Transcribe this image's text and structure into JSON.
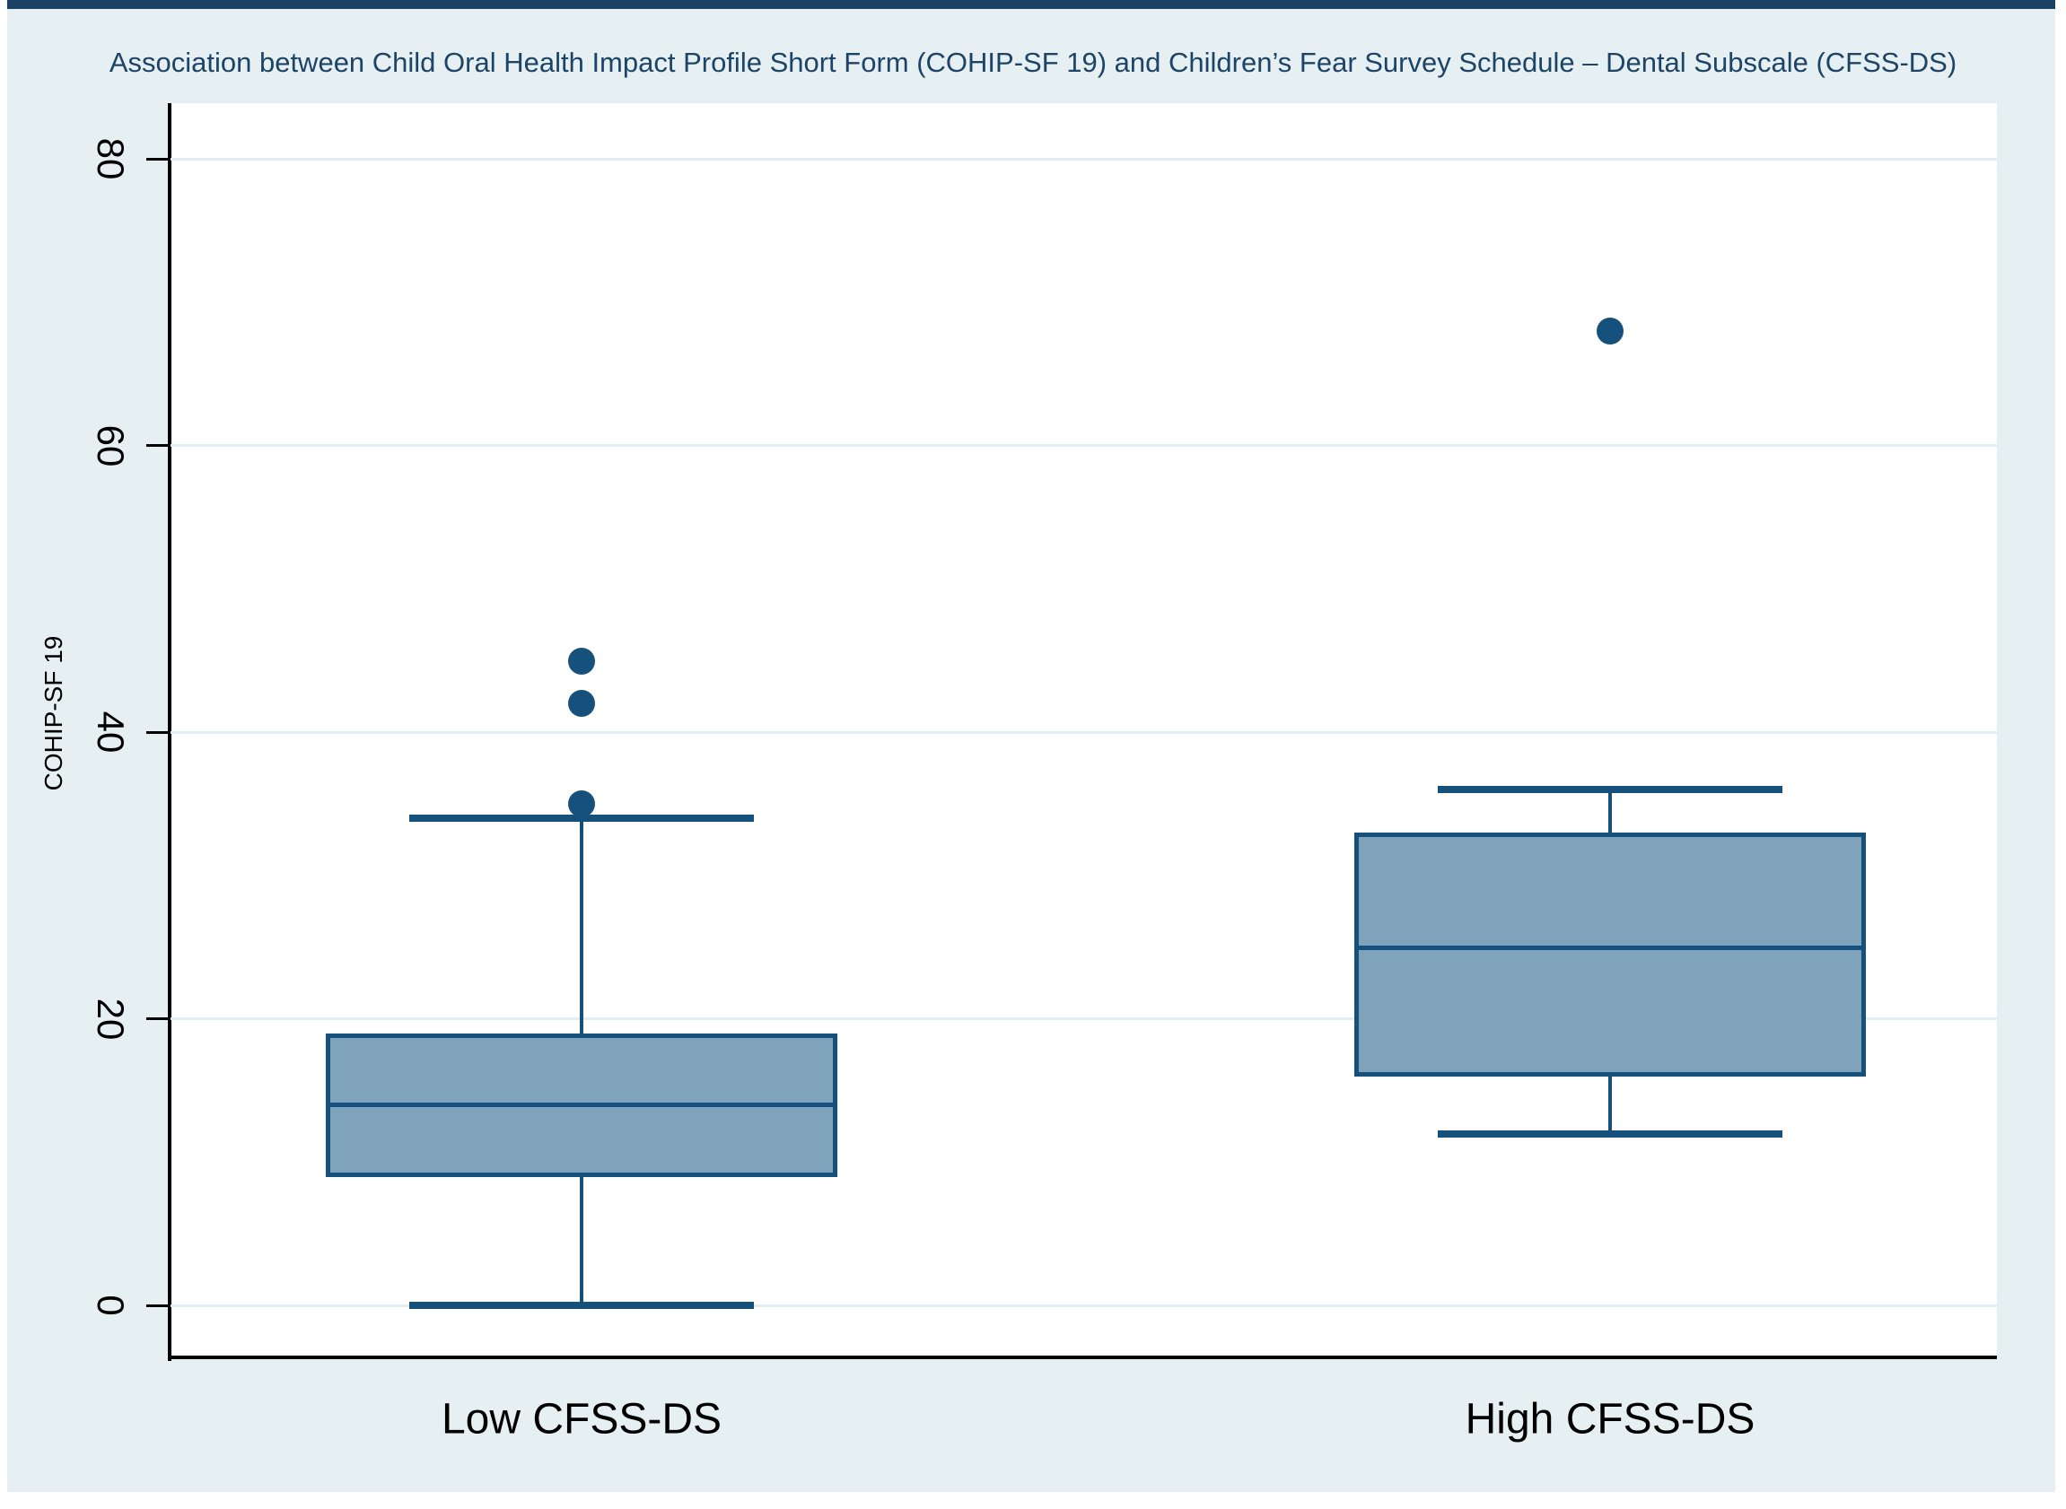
{
  "window": {
    "top_bar_color": "#1a4264",
    "canvas_background": "#e6f0f2",
    "page_background": "#ffffff"
  },
  "chart_data": {
    "type": "box",
    "title": "Association between Child Oral Health Impact Profile Short Form (COHIP-SF 19) and Children’s Fear Survey Schedule – Dental Subscale (CFSS-DS)",
    "ylabel": "COHIP-SF 19",
    "xlabel": "",
    "categories": [
      "Low CFSS-DS",
      "High CFSS-DS"
    ],
    "yticks": [
      0,
      20,
      40,
      60,
      80
    ],
    "ytick_labels": [
      "0",
      "20",
      "40",
      "60",
      "80"
    ],
    "ylim": [
      -3.6,
      83.9
    ],
    "grid": "horizontal-on",
    "legend": "none",
    "series": [
      {
        "name": "Low CFSS-DS",
        "lower_whisker": 0,
        "q1": 9,
        "median": 14,
        "q3": 19,
        "upper_whisker": 34,
        "outliers": [
          35,
          42,
          45
        ]
      },
      {
        "name": "High CFSS-DS",
        "lower_whisker": 12,
        "q1": 16,
        "median": 25,
        "q3": 33,
        "upper_whisker": 36,
        "outliers": [
          68
        ]
      }
    ],
    "colors": {
      "box_fill": "#7fa3ba",
      "box_stroke": "#15517c",
      "outlier_dot": "#15517c",
      "axis_line": "#000000",
      "grid_line": "#e2eef1",
      "title_text": "#1d4467",
      "tick_text": "#000000"
    }
  }
}
